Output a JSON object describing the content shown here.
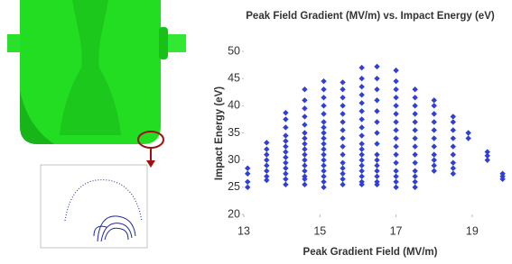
{
  "chart_data": {
    "type": "scatter",
    "title": "Peak Field Gradient (MV/m) vs. Impact Energy (eV)",
    "x_label": "Peak Gradient Field (MV/m)",
    "y_label": "Impact Energy (eV)",
    "xlim": [
      13,
      20
    ],
    "xticks": [
      13,
      15,
      17,
      19
    ],
    "ylim": [
      20,
      50
    ],
    "yticks": [
      20,
      25,
      30,
      35,
      40,
      45,
      50
    ],
    "series": [
      {
        "color": "#2f3fd8",
        "x": [
          13.1,
          13.1,
          13.1,
          13.1,
          13.6,
          13.6,
          13.6,
          13.6,
          13.6,
          13.6,
          13.6,
          13.6,
          14.1,
          14.1,
          14.1,
          14.1,
          14.1,
          14.1,
          14.1,
          14.1,
          14.1,
          14.1,
          14.1,
          14.1,
          14.1,
          14.6,
          14.6,
          14.6,
          14.6,
          14.6,
          14.6,
          14.6,
          14.6,
          14.6,
          14.6,
          14.6,
          14.6,
          14.6,
          14.6,
          14.6,
          14.6,
          15.1,
          15.1,
          15.1,
          15.1,
          15.1,
          15.1,
          15.1,
          15.1,
          15.1,
          15.1,
          15.1,
          15.1,
          15.1,
          15.1,
          15.1,
          15.1,
          15.1,
          15.1,
          15.6,
          15.6,
          15.6,
          15.6,
          15.6,
          15.6,
          15.6,
          15.6,
          15.6,
          15.6,
          15.6,
          15.6,
          15.6,
          15.6,
          15.6,
          16.1,
          16.1,
          16.1,
          16.1,
          16.1,
          16.1,
          16.1,
          16.1,
          16.1,
          16.1,
          16.1,
          16.1,
          16.1,
          16.1,
          16.1,
          16.1,
          16.1,
          16.1,
          16.5,
          16.5,
          16.5,
          16.5,
          16.5,
          16.5,
          16.5,
          16.5,
          16.5,
          16.5,
          16.5,
          16.5,
          16.5,
          16.5,
          16.5,
          17.0,
          17.0,
          17.0,
          17.0,
          17.0,
          17.0,
          17.0,
          17.0,
          17.0,
          17.0,
          17.0,
          17.0,
          17.0,
          17.0,
          17.0,
          17.0,
          17.5,
          17.5,
          17.5,
          17.5,
          17.5,
          17.5,
          17.5,
          17.5,
          17.5,
          17.5,
          17.5,
          17.5,
          17.5,
          17.5,
          18.0,
          18.0,
          18.0,
          18.0,
          18.0,
          18.0,
          18.0,
          18.0,
          18.0,
          18.0,
          18.0,
          18.5,
          18.5,
          18.5,
          18.5,
          18.5,
          18.5,
          18.5,
          18.5,
          18.5,
          18.9,
          18.9,
          19.4,
          19.4,
          19.4,
          19.8,
          19.8,
          19.8
        ],
        "values": [
          25,
          26,
          27.5,
          28.5,
          26.3,
          27,
          28,
          29,
          30,
          31,
          32,
          33.2,
          25.5,
          26.5,
          27.5,
          28.5,
          29.5,
          30.5,
          31.5,
          32.5,
          33.5,
          34.5,
          36,
          37.5,
          38.7,
          25.5,
          26.5,
          27,
          28,
          29,
          30,
          31,
          32,
          33,
          34,
          35,
          36.5,
          38,
          39.5,
          41,
          43,
          25,
          26,
          27,
          28,
          29,
          30,
          31,
          32,
          33,
          34,
          35,
          36,
          37,
          38.5,
          40,
          41.5,
          43,
          44.5,
          25.5,
          26.5,
          27.5,
          28.5,
          29.5,
          31,
          32.5,
          34,
          35.5,
          37,
          38.5,
          40,
          41.5,
          43,
          44.3,
          25.5,
          26,
          27,
          28,
          29,
          30,
          31,
          32,
          33,
          34.5,
          36,
          37.5,
          39,
          40.5,
          42,
          43.5,
          45,
          47,
          25.5,
          26,
          27,
          28,
          29,
          30,
          31,
          33,
          35,
          37,
          39,
          41,
          43,
          45,
          47.2,
          25,
          26,
          27,
          28,
          29.5,
          31,
          32.5,
          34,
          35.5,
          37,
          38.5,
          40,
          41.5,
          43,
          44.5,
          46.5,
          25,
          26,
          27,
          28,
          29.5,
          31,
          32.5,
          34,
          35.5,
          37,
          38.5,
          40,
          41.5,
          43,
          28,
          29,
          30,
          31,
          32.5,
          34,
          35.5,
          37,
          38.5,
          40,
          41,
          27.5,
          28.5,
          29.5,
          31,
          32.5,
          34,
          35.5,
          37,
          38,
          34,
          35,
          30,
          30.8,
          31.5,
          26.5,
          27,
          27.5
        ]
      }
    ]
  }
}
